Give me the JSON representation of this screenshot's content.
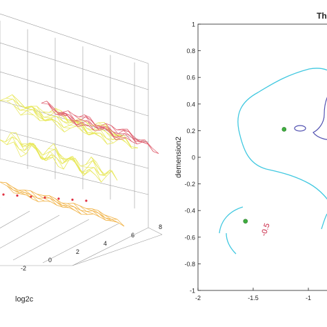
{
  "chart_data": [
    {
      "type": "surface",
      "xlabel": "log2c",
      "x_ticks": [
        "-2",
        "0",
        "2",
        "4",
        "6",
        "8"
      ],
      "grid": true,
      "colors": {
        "top_surface": "#e06070",
        "mid_surface": "#e8e85a",
        "lower_surface": "#f0b040",
        "markers": "#e03040"
      }
    },
    {
      "type": "contour",
      "title": "Th",
      "ylabel": "demension2",
      "xlim": [
        -2,
        -0.75
      ],
      "ylim": [
        -1,
        1
      ],
      "x_ticks": [
        "-2",
        "-1.5",
        "-1"
      ],
      "y_ticks": [
        "1",
        "0.8",
        "0.6",
        "0.4",
        "0.2",
        "0",
        "-0.2",
        "-0.4",
        "-0.6",
        "-0.8",
        "-1"
      ],
      "contour_label": "-0.5",
      "grid": false,
      "colors": {
        "cyan_contour": "#40c8e0",
        "inner_contour": "#5050b0",
        "label": "#c82040",
        "point": "#3fae3f"
      },
      "points": [
        {
          "x": -1.22,
          "y": 0.21
        },
        {
          "x": -1.57,
          "y": -0.48
        }
      ]
    }
  ]
}
